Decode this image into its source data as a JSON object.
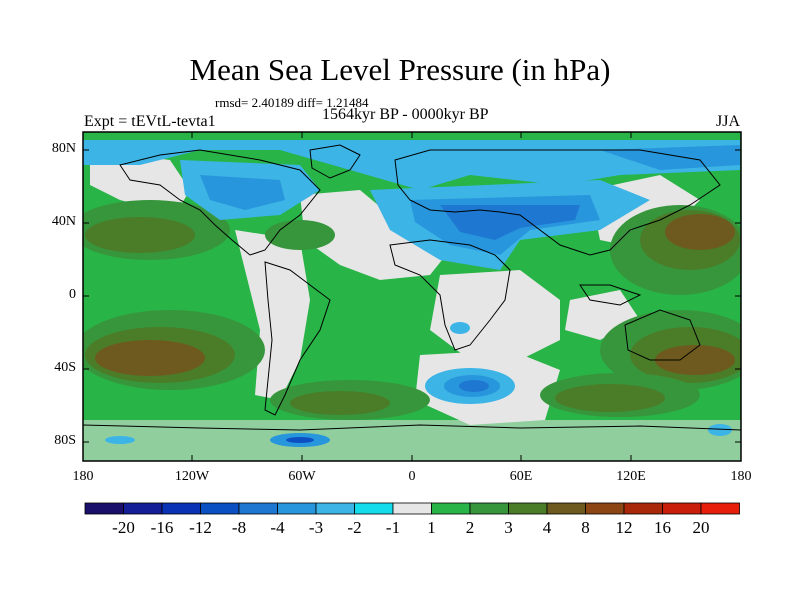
{
  "title": "Mean Sea Level Pressure (in hPa)",
  "stats": "rmsd= 2.40189 diff= 1.21484",
  "period": "1564kyr BP - 0000kyr BP",
  "experiment": "Expt = tEVtL-tevta1",
  "season": "JJA",
  "lat_labels": [
    "80N",
    "40N",
    "0",
    "40S",
    "80S"
  ],
  "lon_labels": [
    "180",
    "120W",
    "60W",
    "0",
    "60E",
    "120E",
    "180"
  ],
  "colorbar": {
    "labels": [
      "-20",
      "-16",
      "-12",
      "-8",
      "-4",
      "-3",
      "-2",
      "-1",
      "1",
      "2",
      "3",
      "4",
      "8",
      "12",
      "16",
      "20"
    ],
    "colors": [
      "#1a0f6b",
      "#141e96",
      "#0a32b4",
      "#0a50c3",
      "#1e78d2",
      "#2896dc",
      "#3cb4e6",
      "#14dceb",
      "#e6e6e6",
      "#28b446",
      "#37963c",
      "#4b7d28",
      "#6e5a1e",
      "#8c4614",
      "#aa280a",
      "#c81e0a",
      "#e61e0a"
    ]
  },
  "colors": {
    "neutral": "#e6e6e6",
    "land_outline": "#000000"
  }
}
